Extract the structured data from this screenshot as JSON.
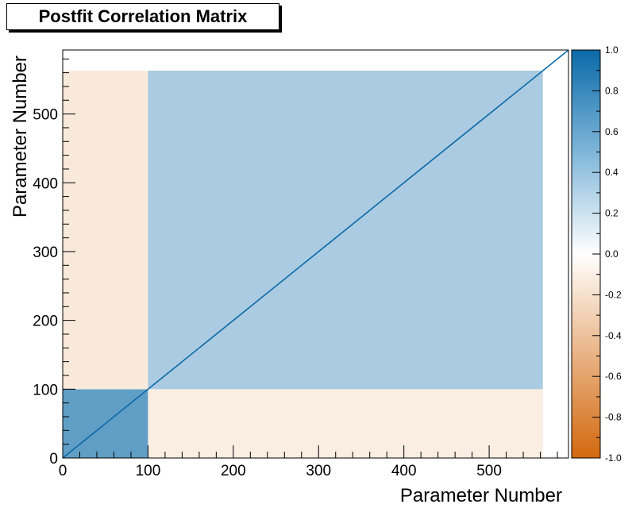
{
  "chart_data": {
    "type": "heatmap",
    "title": "Postfit Correlation Matrix",
    "xlabel": "Parameter Number",
    "ylabel": "Parameter Number",
    "xlim": [
      0,
      593
    ],
    "ylim": [
      0,
      593
    ],
    "x_ticks": [
      0,
      100,
      200,
      300,
      400,
      500
    ],
    "y_ticks": [
      0,
      100,
      200,
      300,
      400,
      500
    ],
    "z_range": [
      -1.0,
      1.0
    ],
    "colorbar_ticks": [
      "1.0",
      "0.8",
      "0.6",
      "0.4",
      "0.2",
      "0.0",
      "-0.2",
      "-0.4",
      "-0.6",
      "-0.8",
      "-1.0"
    ],
    "colorscale": {
      "negative": "#d2690f",
      "zero": "#ffffff",
      "positive": "#0b6aa8"
    },
    "blocks": [
      {
        "x": [
          0,
          100
        ],
        "y": [
          0,
          100
        ],
        "value": 0.65
      },
      {
        "x": [
          0,
          100
        ],
        "y": [
          100,
          563
        ],
        "value": -0.15
      },
      {
        "x": [
          100,
          563
        ],
        "y": [
          0,
          100
        ],
        "value": -0.12
      },
      {
        "x": [
          100,
          563
        ],
        "y": [
          100,
          563
        ],
        "value": 0.35
      },
      {
        "x": [
          563,
          593
        ],
        "y": [
          0,
          593
        ],
        "value": 0.0
      },
      {
        "x": [
          0,
          563
        ],
        "y": [
          563,
          593
        ],
        "value": 0.0
      }
    ],
    "diagonal_value": 1.0,
    "grid": false
  }
}
